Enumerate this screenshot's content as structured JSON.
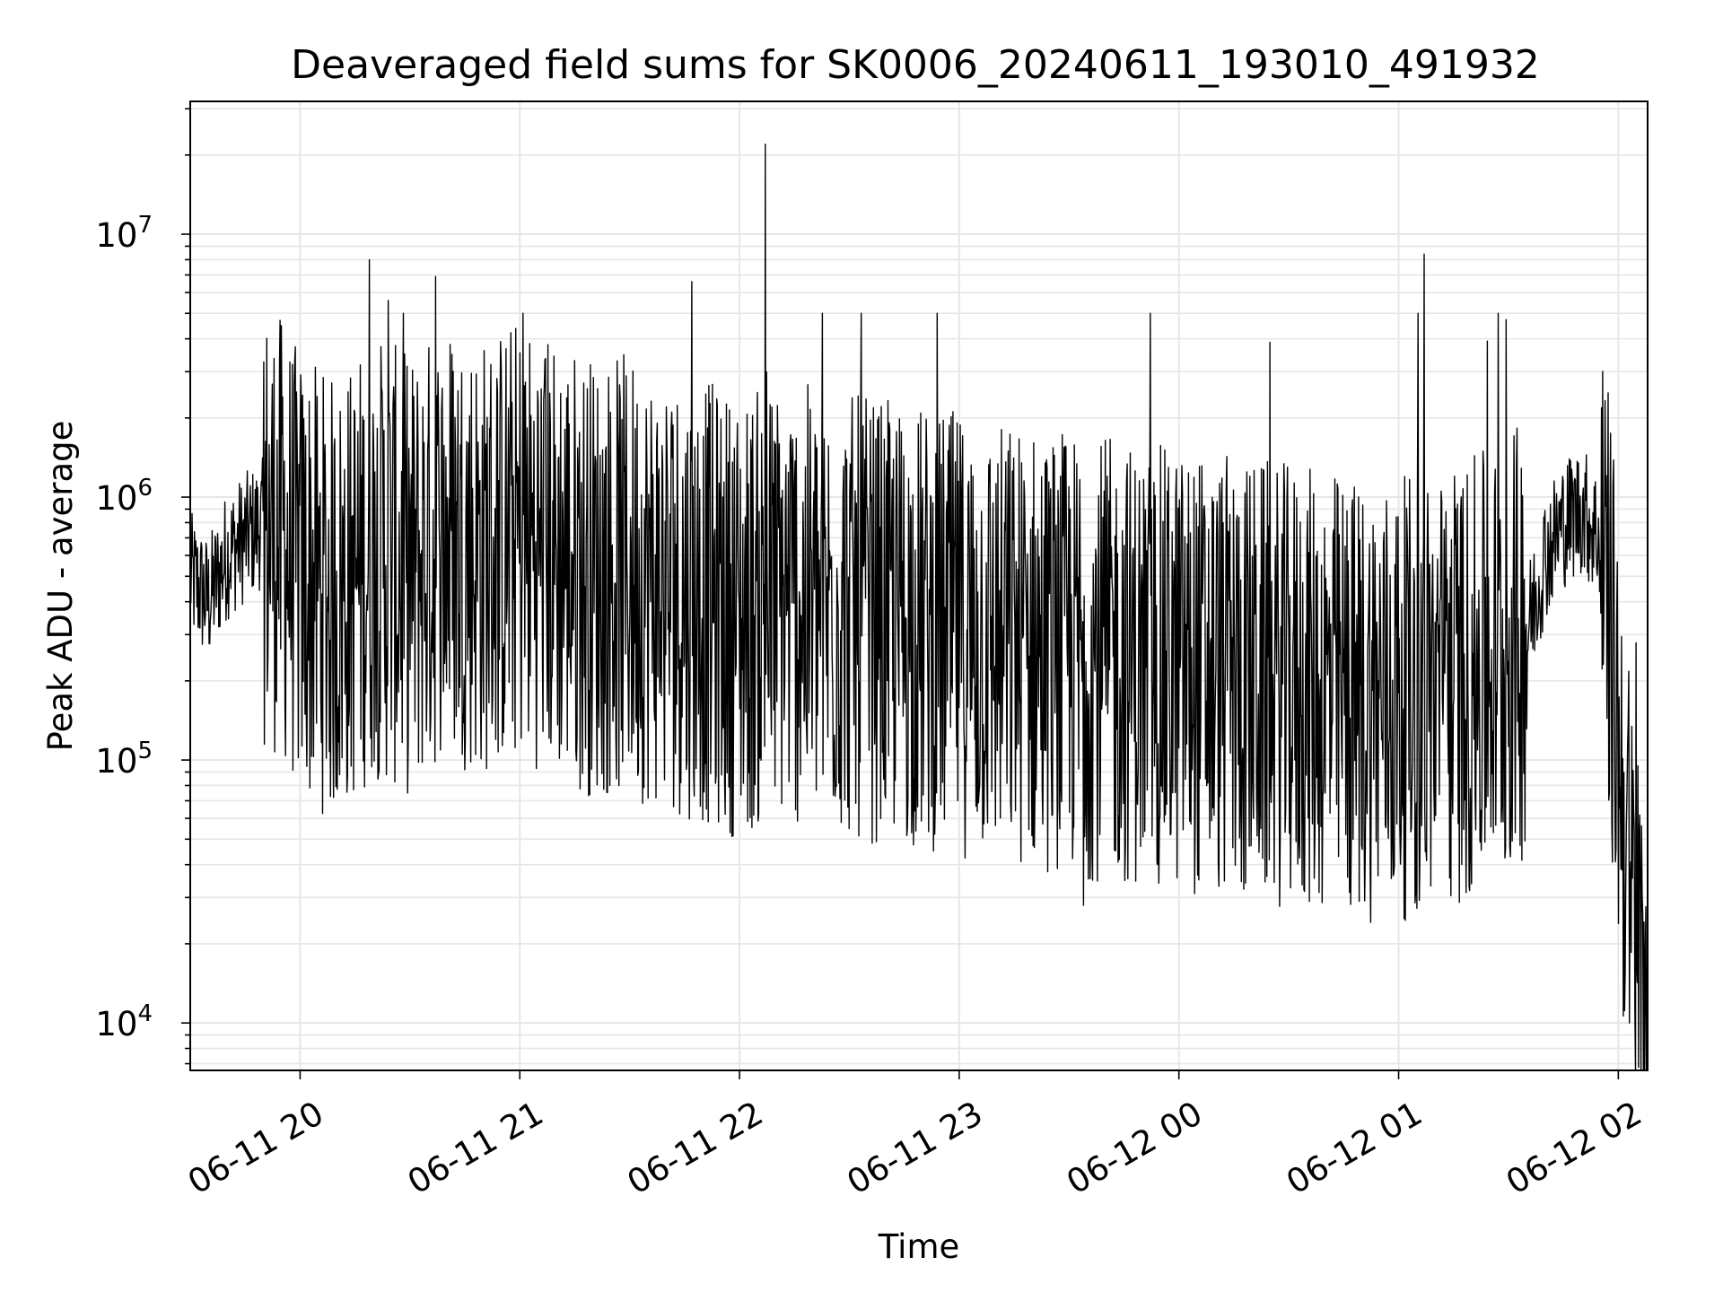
{
  "chart_data": {
    "type": "line",
    "title": "Deaveraged field sums for SK0006_20240611_193010_491932",
    "xlabel": "Time",
    "ylabel": "Peak ADU - average",
    "yscale": "log",
    "grid": true,
    "xlim": [
      "2024-06-11 19:30",
      "2024-06-12 02:08"
    ],
    "ylim": [
      6600,
      32000000
    ],
    "x_ticks": [
      {
        "value": "2024-06-11 20:00",
        "label": "06-11 20"
      },
      {
        "value": "2024-06-11 21:00",
        "label": "06-11 21"
      },
      {
        "value": "2024-06-11 22:00",
        "label": "06-11 22"
      },
      {
        "value": "2024-06-11 23:00",
        "label": "06-11 23"
      },
      {
        "value": "2024-06-12 00:00",
        "label": "06-12 00"
      },
      {
        "value": "2024-06-12 01:00",
        "label": "06-12 01"
      },
      {
        "value": "2024-06-12 02:00",
        "label": "06-12 02"
      }
    ],
    "y_ticks": [
      {
        "value": 10000,
        "base": "10",
        "exp": "4"
      },
      {
        "value": 100000,
        "base": "10",
        "exp": "5"
      },
      {
        "value": 1000000,
        "base": "10",
        "exp": "6"
      },
      {
        "value": 10000000,
        "base": "10",
        "exp": "7"
      }
    ],
    "series_color": "#000000",
    "notable_points": [
      {
        "x": "2024-06-11 20:19",
        "y": 8000000
      },
      {
        "x": "2024-06-11 20:24",
        "y": 5600000
      },
      {
        "x": "2024-06-11 20:37",
        "y": 6900000
      },
      {
        "x": "2024-06-11 21:47",
        "y": 6600000
      },
      {
        "x": "2024-06-11 22:07",
        "y": 22000000
      },
      {
        "x": "2024-06-12 01:07",
        "y": 8400000
      },
      {
        "x": "2024-06-11 23:34",
        "y": 28000
      },
      {
        "x": "2024-06-12 02:03",
        "y": 10000
      }
    ],
    "series": [
      {
        "x": [
          "2024-06-11 19:30",
          "2024-06-11 19:35",
          "2024-06-11 19:40",
          "2024-06-11 19:45",
          "2024-06-11 19:50",
          "2024-06-11 19:55",
          "2024-06-11 20:00",
          "2024-06-11 20:10",
          "2024-06-11 20:20",
          "2024-06-11 20:30",
          "2024-06-11 20:40",
          "2024-06-11 20:50",
          "2024-06-11 21:00",
          "2024-06-11 21:10",
          "2024-06-11 21:20",
          "2024-06-11 21:30",
          "2024-06-11 21:40",
          "2024-06-11 21:50",
          "2024-06-11 22:00",
          "2024-06-11 22:10",
          "2024-06-11 22:20",
          "2024-06-11 22:30",
          "2024-06-11 22:40",
          "2024-06-11 22:50",
          "2024-06-11 23:00",
          "2024-06-11 23:10",
          "2024-06-11 23:20",
          "2024-06-11 23:30",
          "2024-06-11 23:40",
          "2024-06-11 23:50",
          "2024-06-12 00:00",
          "2024-06-12 00:10",
          "2024-06-12 00:20",
          "2024-06-12 00:30",
          "2024-06-12 00:40",
          "2024-06-12 00:50",
          "2024-06-12 01:00",
          "2024-06-12 01:10",
          "2024-06-12 01:20",
          "2024-06-12 01:30",
          "2024-06-12 01:35",
          "2024-06-12 01:40",
          "2024-06-12 01:45",
          "2024-06-12 01:50",
          "2024-06-12 01:55",
          "2024-06-12 01:58",
          "2024-06-12 02:00",
          "2024-06-12 02:02",
          "2024-06-12 02:04",
          "2024-06-12 02:06",
          "2024-06-12 02:08"
        ],
        "values": [
          500000,
          400000,
          600000,
          700000,
          800000,
          700000,
          500000,
          400000,
          600000,
          500000,
          700000,
          600000,
          700000,
          600000,
          500000,
          500000,
          450000,
          400000,
          350000,
          400000,
          380000,
          350000,
          330000,
          320000,
          300000,
          280000,
          270000,
          250000,
          240000,
          230000,
          220000,
          210000,
          200000,
          190000,
          180000,
          170000,
          170000,
          180000,
          200000,
          250000,
          300000,
          600000,
          800000,
          900000,
          700000,
          300000,
          120000,
          50000,
          25000,
          15000,
          20000
        ]
      }
    ]
  }
}
